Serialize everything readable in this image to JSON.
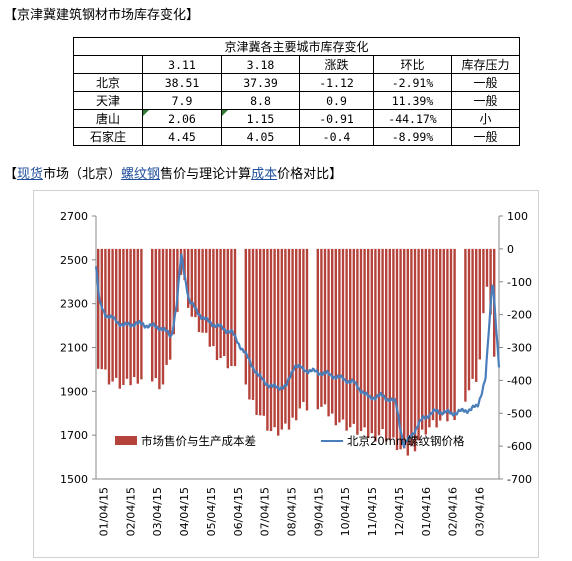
{
  "heading1": "【京津冀建筑钢材市场库存变化】",
  "table": {
    "title": "京津冀各主要城市库存变化",
    "headers": [
      "",
      "3.11",
      "3.18",
      "涨跌",
      "环比",
      "库存压力"
    ],
    "rows": [
      [
        "北京",
        "38.51",
        "37.39",
        "-1.12",
        "-2.91%",
        "一般"
      ],
      [
        "天津",
        "7.9",
        "8.8",
        "0.9",
        "11.39%",
        "一般"
      ],
      [
        "唐山",
        "2.06",
        "1.15",
        "-0.91",
        "-44.17%",
        "小"
      ],
      [
        "石家庄",
        "4.45",
        "4.05",
        "-0.4",
        "-8.99%",
        "一般"
      ]
    ]
  },
  "heading2": {
    "p1": "【",
    "p2": "现货",
    "p3": "市场（北京）",
    "p4": "螺纹钢",
    "p5": "售价与理论计算",
    "p6": "成本",
    "p7": "价格对比】"
  },
  "colors": {
    "bar": "#b5433b",
    "line": "#4a7ebb",
    "link": "#1f4e9c",
    "triangle": "#2e7d32"
  },
  "chart_data": {
    "type": "bar+line",
    "y_left": {
      "min": 1500,
      "max": 2700,
      "ticks": [
        1500,
        1700,
        1900,
        2100,
        2300,
        2500,
        2700
      ]
    },
    "y_right": {
      "min": -700,
      "max": 100,
      "ticks": [
        -700,
        -600,
        -500,
        -400,
        -300,
        -200,
        -100,
        0,
        100
      ]
    },
    "x_labels": [
      "01/04/15",
      "02/04/15",
      "03/04/15",
      "04/04/15",
      "05/04/15",
      "06/04/15",
      "07/04/15",
      "08/04/15",
      "09/04/15",
      "10/04/15",
      "11/04/15",
      "12/04/15",
      "01/04/16",
      "02/04/16",
      "03/04/16"
    ],
    "x_range": [
      "2015-01-01",
      "2016-03-25"
    ],
    "series": [
      {
        "name": "市场售价与生产成本差",
        "axis": "right",
        "kind": "bar",
        "points": [
          [
            "2015-01-01",
            -340
          ],
          [
            "2015-01-15",
            -400
          ],
          [
            "2015-02-01",
            -420
          ],
          [
            "2015-02-15",
            -390
          ],
          [
            "2015-03-01",
            -400
          ],
          [
            "2015-03-15",
            -420
          ],
          [
            "2015-03-26",
            -300
          ],
          [
            "2015-04-05",
            -60
          ],
          [
            "2015-04-15",
            -200
          ],
          [
            "2015-05-01",
            -270
          ],
          [
            "2015-05-15",
            -320
          ],
          [
            "2015-06-01",
            -360
          ],
          [
            "2015-06-15",
            -430
          ],
          [
            "2015-07-01",
            -500
          ],
          [
            "2015-07-15",
            -560
          ],
          [
            "2015-08-01",
            -550
          ],
          [
            "2015-08-15",
            -480
          ],
          [
            "2015-09-01",
            -470
          ],
          [
            "2015-09-15",
            -500
          ],
          [
            "2015-10-01",
            -530
          ],
          [
            "2015-10-15",
            -550
          ],
          [
            "2015-11-01",
            -570
          ],
          [
            "2015-11-15",
            -560
          ],
          [
            "2015-12-01",
            -600
          ],
          [
            "2015-12-10",
            -630
          ],
          [
            "2015-12-20",
            -600
          ],
          [
            "2016-01-01",
            -550
          ],
          [
            "2016-01-15",
            -530
          ],
          [
            "2016-02-01",
            -510
          ],
          [
            "2016-02-15",
            -450
          ],
          [
            "2016-03-01",
            -380
          ],
          [
            "2016-03-10",
            -100
          ],
          [
            "2016-03-20",
            -350
          ],
          [
            "2016-03-25",
            -430
          ]
        ]
      },
      {
        "name": "北京20mm螺纹钢价格",
        "axis": "left",
        "kind": "line",
        "points": [
          [
            "2015-01-01",
            2470
          ],
          [
            "2015-01-05",
            2300
          ],
          [
            "2015-01-12",
            2250
          ],
          [
            "2015-01-20",
            2230
          ],
          [
            "2015-02-01",
            2200
          ],
          [
            "2015-02-15",
            2210
          ],
          [
            "2015-03-01",
            2200
          ],
          [
            "2015-03-15",
            2190
          ],
          [
            "2015-03-26",
            2150
          ],
          [
            "2015-04-01",
            2300
          ],
          [
            "2015-04-06",
            2520
          ],
          [
            "2015-04-15",
            2310
          ],
          [
            "2015-05-01",
            2230
          ],
          [
            "2015-05-15",
            2200
          ],
          [
            "2015-06-01",
            2170
          ],
          [
            "2015-06-15",
            2080
          ],
          [
            "2015-07-01",
            1970
          ],
          [
            "2015-07-15",
            1920
          ],
          [
            "2015-08-01",
            1920
          ],
          [
            "2015-08-10",
            2020
          ],
          [
            "2015-08-20",
            2000
          ],
          [
            "2015-09-01",
            1990
          ],
          [
            "2015-09-15",
            1980
          ],
          [
            "2015-10-01",
            1960
          ],
          [
            "2015-10-15",
            1940
          ],
          [
            "2015-11-01",
            1870
          ],
          [
            "2015-11-15",
            1880
          ],
          [
            "2015-12-01",
            1850
          ],
          [
            "2015-12-10",
            1650
          ],
          [
            "2015-12-20",
            1710
          ],
          [
            "2016-01-01",
            1780
          ],
          [
            "2016-01-15",
            1810
          ],
          [
            "2016-02-01",
            1800
          ],
          [
            "2016-02-15",
            1810
          ],
          [
            "2016-03-01",
            1830
          ],
          [
            "2016-03-10",
            1960
          ],
          [
            "2016-03-18",
            2420
          ],
          [
            "2016-03-25",
            2010
          ]
        ]
      }
    ]
  }
}
